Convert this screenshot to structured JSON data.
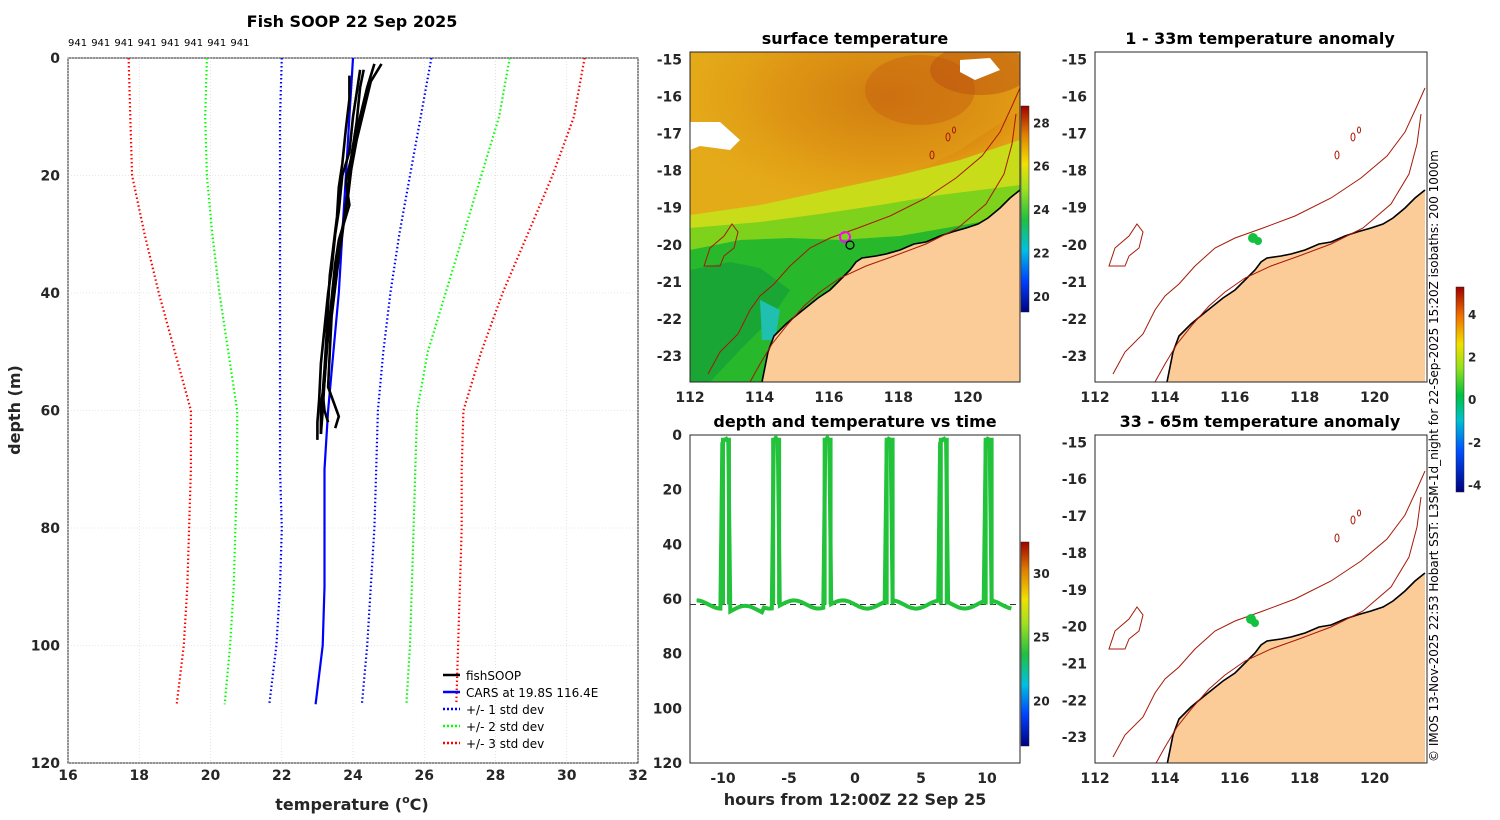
{
  "credit": "© IMOS 13-Nov-2025 22:53 Hobart SST: L3SM-1d_night for 22-Sep-2025 15:20Z isobaths: 200  1000m",
  "chart_data": [
    {
      "id": "profile",
      "type": "line",
      "title": "Fish SOOP 22 Sep 2025",
      "top_labels": [
        "941",
        "941",
        "941",
        "941",
        "941",
        "941",
        "941",
        "941"
      ],
      "xlabel_main": "temperature (",
      "xlabel_sup": "o",
      "xlabel_end": "C)",
      "ylabel": "depth (m)",
      "xlim": [
        16,
        32
      ],
      "ylim": [
        0,
        120
      ],
      "y_reversed": true,
      "xticks": [
        16,
        18,
        20,
        22,
        24,
        26,
        28,
        30,
        32
      ],
      "yticks": [
        0,
        20,
        40,
        60,
        80,
        100,
        120
      ],
      "legend": {
        "placement": "bottom-right",
        "entries": [
          "fishSOOP",
          "CARS at 19.8S 116.4E",
          "+/- 1 std dev",
          "+/- 2 std dev",
          "+/- 3 std dev"
        ]
      },
      "series": [
        {
          "name": "CARS at 19.8S 116.4E",
          "color": "#0000ff",
          "style": "solid",
          "depth": [
            0,
            10,
            20,
            30,
            40,
            50,
            60,
            70,
            80,
            90,
            100,
            110
          ],
          "temp": [
            24.0,
            23.9,
            23.8,
            23.7,
            23.6,
            23.45,
            23.3,
            23.2,
            23.2,
            23.2,
            23.15,
            22.95
          ]
        },
        {
          "name": "-1 std",
          "color": "#0000ff",
          "style": "dotted",
          "depth": [
            0,
            10,
            20,
            30,
            40,
            50,
            60,
            70,
            80,
            90,
            100,
            110
          ],
          "temp": [
            22.0,
            21.95,
            21.95,
            21.95,
            21.95,
            21.95,
            21.95,
            21.95,
            22.0,
            21.95,
            21.85,
            21.65
          ]
        },
        {
          "name": "+1 std",
          "color": "#0000ff",
          "style": "dotted",
          "depth": [
            0,
            10,
            20,
            30,
            40,
            50,
            60,
            70,
            80,
            90,
            100,
            110
          ],
          "temp": [
            26.2,
            25.9,
            25.6,
            25.3,
            25.05,
            24.85,
            24.7,
            24.65,
            24.6,
            24.5,
            24.4,
            24.25
          ]
        },
        {
          "name": "-2 std",
          "color": "#00ff00",
          "style": "dotted",
          "depth": [
            0,
            10,
            20,
            30,
            40,
            50,
            60,
            70,
            80,
            90,
            100,
            110
          ],
          "temp": [
            19.9,
            19.85,
            19.9,
            20.05,
            20.25,
            20.5,
            20.75,
            20.75,
            20.7,
            20.65,
            20.55,
            20.4
          ]
        },
        {
          "name": "+2 std",
          "color": "#00ff00",
          "style": "dotted",
          "depth": [
            0,
            10,
            20,
            30,
            40,
            50,
            60,
            70,
            80,
            90,
            100,
            110
          ],
          "temp": [
            28.4,
            28.1,
            27.6,
            27.1,
            26.6,
            26.1,
            25.8,
            25.75,
            25.7,
            25.65,
            25.6,
            25.5
          ]
        },
        {
          "name": "-3 std",
          "color": "#ff0000",
          "style": "dotted",
          "depth": [
            0,
            10,
            20,
            30,
            40,
            50,
            60,
            70,
            80,
            90,
            100,
            110
          ],
          "temp": [
            17.7,
            17.75,
            17.8,
            18.15,
            18.55,
            19.0,
            19.45,
            19.45,
            19.4,
            19.35,
            19.25,
            19.05
          ]
        },
        {
          "name": "+3 std",
          "color": "#ff0000",
          "style": "dotted",
          "depth": [
            0,
            10,
            20,
            30,
            40,
            50,
            60,
            70,
            80,
            90,
            100,
            110
          ],
          "temp": [
            30.5,
            30.2,
            29.6,
            28.9,
            28.2,
            27.6,
            27.1,
            27.05,
            27.05,
            27.0,
            26.95,
            26.9
          ]
        }
      ],
      "fishsoop_casts": [
        {
          "depth": [
            1,
            5,
            10,
            15,
            20,
            25,
            30,
            35,
            40,
            45,
            50,
            55,
            60,
            64
          ],
          "temp": [
            24.6,
            24.4,
            24.2,
            24.0,
            23.9,
            23.8,
            23.7,
            23.55,
            23.45,
            23.35,
            23.25,
            23.2,
            23.15,
            23.1
          ]
        },
        {
          "depth": [
            2,
            6,
            10,
            16,
            20,
            26,
            30,
            36,
            40,
            46,
            52,
            58,
            62,
            65
          ],
          "temp": [
            24.2,
            24.1,
            24.0,
            23.9,
            23.7,
            23.6,
            23.5,
            23.4,
            23.3,
            23.2,
            23.1,
            23.05,
            23.0,
            23.0
          ]
        },
        {
          "depth": [
            1,
            4,
            9,
            14,
            19,
            24,
            29,
            34,
            39,
            44,
            50,
            56,
            61,
            63
          ],
          "temp": [
            24.8,
            24.5,
            24.3,
            24.1,
            23.95,
            23.85,
            23.7,
            23.6,
            23.5,
            23.4,
            23.35,
            23.3,
            23.6,
            23.5
          ]
        },
        {
          "depth": [
            3,
            7,
            12,
            18,
            22,
            27,
            32,
            37,
            42,
            48,
            53,
            57,
            60,
            62
          ],
          "temp": [
            23.9,
            23.9,
            23.8,
            23.7,
            23.6,
            23.55,
            23.45,
            23.35,
            23.3,
            23.25,
            23.2,
            23.15,
            23.2,
            23.3
          ]
        },
        {
          "depth": [
            2,
            5,
            11,
            17,
            21,
            25,
            31,
            35,
            41,
            47,
            51,
            55,
            59,
            64
          ],
          "temp": [
            24.3,
            24.2,
            24.1,
            23.95,
            23.8,
            23.9,
            23.6,
            23.5,
            23.4,
            23.3,
            23.25,
            23.2,
            23.1,
            23.1
          ]
        }
      ]
    },
    {
      "id": "sst",
      "type": "heatmap",
      "title": "surface temperature",
      "xlim": [
        112,
        121.5
      ],
      "ylim": [
        -23.7,
        -14.8
      ],
      "xticks": [
        112,
        114,
        116,
        118,
        120
      ],
      "yticks": [
        -15,
        -16,
        -17,
        -18,
        -19,
        -20,
        -21,
        -22,
        -23
      ],
      "colorbar": {
        "range": [
          19.3,
          28.8
        ],
        "ticks": [
          20,
          22,
          24,
          26,
          28
        ]
      },
      "vessel_position": {
        "lon": 116.5,
        "lat": -19.8
      }
    },
    {
      "id": "timeseries",
      "type": "scatter",
      "title": "depth and temperature vs time",
      "xlabel": "hours from 12:00Z 22 Sep 25",
      "xlim": [
        -12.5,
        12.5
      ],
      "ylim": [
        0,
        120
      ],
      "y_reversed": true,
      "xticks": [
        -10,
        -5,
        0,
        5,
        10
      ],
      "yticks": [
        0,
        20,
        40,
        60,
        80,
        100,
        120
      ],
      "colorbar": {
        "range": [
          16.5,
          32.5
        ],
        "ticks": [
          20,
          25,
          30
        ]
      },
      "dives": [
        -9.8,
        -6.0,
        -2.1,
        2.6,
        6.7,
        10.1
      ],
      "bottom_depth": 62,
      "point_temp": 24.0
    },
    {
      "id": "anom1",
      "type": "heatmap",
      "title": "1 - 33m temperature anomaly",
      "xlim": [
        112,
        121.5
      ],
      "ylim": [
        -23.7,
        -14.8
      ],
      "xticks": [
        112,
        114,
        116,
        118,
        120
      ],
      "yticks": [
        -15,
        -16,
        -17,
        -18,
        -19,
        -20,
        -21,
        -22,
        -23
      ],
      "anomaly_value": 0.2
    },
    {
      "id": "anom2",
      "type": "heatmap",
      "title": "33 - 65m temperature anomaly",
      "xlim": [
        112,
        121.5
      ],
      "ylim": [
        -23.7,
        -14.8
      ],
      "xticks": [
        112,
        114,
        116,
        118,
        120
      ],
      "yticks": [
        -15,
        -16,
        -17,
        -18,
        -19,
        -20,
        -21,
        -22,
        -23
      ],
      "anomaly_value": 0.1
    },
    {
      "id": "anomcb",
      "type": "heatmap",
      "title": "",
      "colorbar": {
        "range": [
          -4.3,
          5.3
        ],
        "ticks": [
          -4,
          -2,
          0,
          2,
          4
        ]
      }
    }
  ]
}
